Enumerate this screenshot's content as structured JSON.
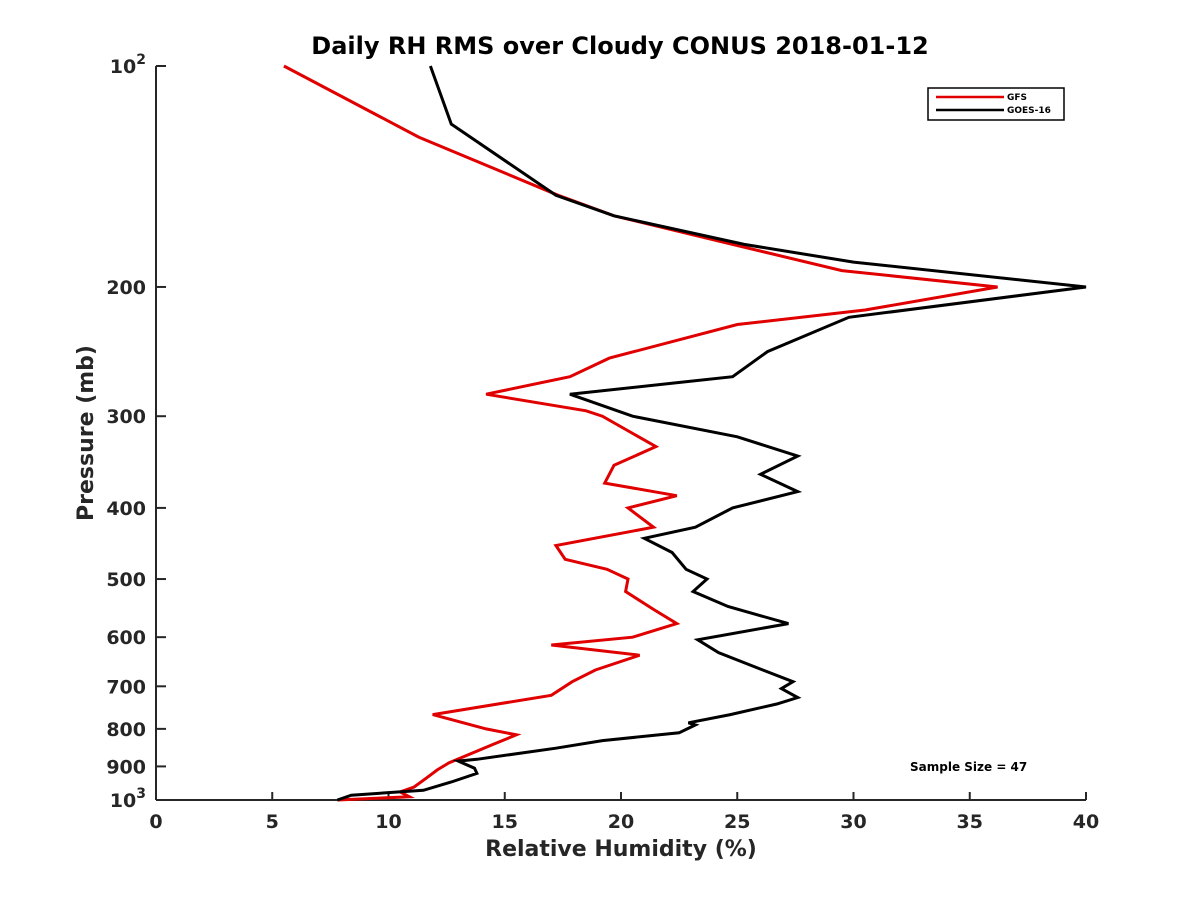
{
  "chart_data": {
    "type": "line",
    "title": "Daily RH RMS over Cloudy CONUS 2018-01-12",
    "xlabel": "Relative Humidity (%)",
    "ylabel": "Pressure (mb)",
    "xlim": [
      0,
      40
    ],
    "ylim": [
      100,
      1000
    ],
    "yscale": "log",
    "y_reversed": true,
    "x_ticks": [
      0,
      5,
      10,
      15,
      20,
      25,
      30,
      35,
      40
    ],
    "x_tick_labels": [
      "0",
      "5",
      "10",
      "15",
      "20",
      "25",
      "30",
      "35",
      "40"
    ],
    "y_ticks": [
      100,
      200,
      300,
      400,
      500,
      600,
      700,
      800,
      900,
      1000
    ],
    "y_tick_labels": [
      {
        "base": "10",
        "exp": "2"
      },
      {
        "text": "200"
      },
      {
        "text": "300"
      },
      {
        "text": "400"
      },
      {
        "text": "500"
      },
      {
        "text": "600"
      },
      {
        "text": "700"
      },
      {
        "text": "800"
      },
      {
        "text": "900"
      },
      {
        "base": "10",
        "exp": "3"
      }
    ],
    "legend_position": "top-right",
    "annotation": "Sample Size = 47",
    "series": [
      {
        "name": "GFS",
        "color": "#e00000",
        "points": [
          [
            5.5,
            100
          ],
          [
            11.3,
            125
          ],
          [
            17.3,
            150
          ],
          [
            19.7,
            160
          ],
          [
            24.8,
            175
          ],
          [
            29.5,
            190
          ],
          [
            36.2,
            200
          ],
          [
            30.5,
            215
          ],
          [
            25.0,
            225
          ],
          [
            19.5,
            250
          ],
          [
            17.8,
            265
          ],
          [
            14.2,
            280
          ],
          [
            18.5,
            295
          ],
          [
            19.2,
            300
          ],
          [
            21.5,
            330
          ],
          [
            19.7,
            350
          ],
          [
            19.3,
            370
          ],
          [
            22.4,
            385
          ],
          [
            20.3,
            400
          ],
          [
            21.4,
            425
          ],
          [
            17.2,
            450
          ],
          [
            17.6,
            470
          ],
          [
            19.4,
            485
          ],
          [
            20.3,
            500
          ],
          [
            20.2,
            520
          ],
          [
            21.4,
            550
          ],
          [
            22.4,
            575
          ],
          [
            20.5,
            600
          ],
          [
            17.0,
            615
          ],
          [
            20.8,
            635
          ],
          [
            18.9,
            665
          ],
          [
            17.9,
            690
          ],
          [
            17.0,
            720
          ],
          [
            11.9,
            765
          ],
          [
            14.2,
            800
          ],
          [
            15.5,
            815
          ],
          [
            14.5,
            840
          ],
          [
            12.6,
            890
          ],
          [
            12.1,
            910
          ],
          [
            11.6,
            935
          ],
          [
            11.1,
            960
          ],
          [
            10.5,
            975
          ],
          [
            10.9,
            990
          ],
          [
            7.8,
            1000
          ]
        ]
      },
      {
        "name": "GOES-16",
        "color": "#000000",
        "points": [
          [
            11.8,
            100
          ],
          [
            12.7,
            120
          ],
          [
            17.2,
            150
          ],
          [
            19.7,
            160
          ],
          [
            25.3,
            175
          ],
          [
            30.0,
            185
          ],
          [
            40.0,
            200
          ],
          [
            29.8,
            220
          ],
          [
            26.3,
            245
          ],
          [
            24.8,
            265
          ],
          [
            17.8,
            280
          ],
          [
            20.5,
            300
          ],
          [
            25.0,
            320
          ],
          [
            27.6,
            340
          ],
          [
            26.0,
            360
          ],
          [
            27.6,
            380
          ],
          [
            24.8,
            400
          ],
          [
            23.2,
            425
          ],
          [
            21.0,
            440
          ],
          [
            22.2,
            460
          ],
          [
            22.8,
            485
          ],
          [
            23.7,
            500
          ],
          [
            23.1,
            520
          ],
          [
            24.6,
            545
          ],
          [
            27.2,
            575
          ],
          [
            23.3,
            605
          ],
          [
            24.2,
            630
          ],
          [
            26.1,
            665
          ],
          [
            27.4,
            690
          ],
          [
            26.9,
            705
          ],
          [
            27.6,
            725
          ],
          [
            26.7,
            740
          ],
          [
            24.7,
            765
          ],
          [
            22.9,
            785
          ],
          [
            23.2,
            790
          ],
          [
            22.5,
            810
          ],
          [
            19.2,
            830
          ],
          [
            17.2,
            850
          ],
          [
            13.8,
            880
          ],
          [
            13.0,
            885
          ],
          [
            13.7,
            905
          ],
          [
            13.8,
            920
          ],
          [
            12.7,
            945
          ],
          [
            11.5,
            970
          ],
          [
            8.4,
            985
          ],
          [
            7.8,
            1000
          ]
        ]
      }
    ]
  }
}
